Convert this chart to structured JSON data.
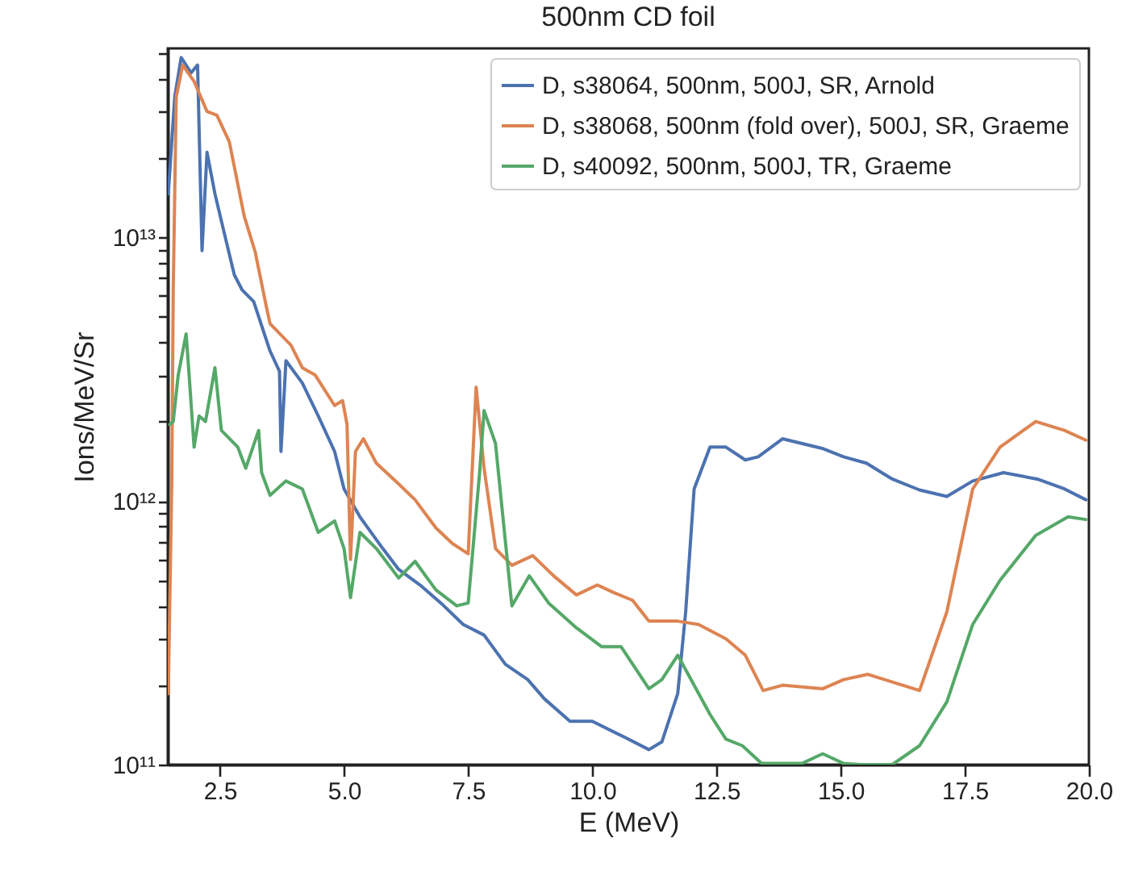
{
  "chart_data": {
    "type": "line",
    "title": "500nm CD foil",
    "xlabel": "E (MeV)",
    "ylabel": "Ions/MeV/Sr",
    "log": "y",
    "grid": false,
    "legend": "top right",
    "line_style": "solid",
    "xlim": [
      1.45,
      20
    ],
    "xticks": [
      2.5,
      {
        "value": 5,
        "label": "5.0"
      },
      7.5,
      {
        "value": 10,
        "label": "10.0"
      },
      12.5,
      {
        "value": 15,
        "label": "15.0"
      },
      17.5,
      {
        "value": 20,
        "label": "20.0"
      }
    ],
    "ylim": [
      100000000000.0,
      52000000000000.0
    ],
    "yticks": [
      {
        "value": 100000000000.0,
        "label": "10¹¹"
      },
      {
        "value": 200000000000.0,
        "label": null
      },
      {
        "value": 300000000000.0,
        "label": null
      },
      {
        "value": 400000000000.0,
        "label": null
      },
      {
        "value": 500000000000.0,
        "label": null
      },
      {
        "value": 600000000000.0,
        "label": null
      },
      {
        "value": 700000000000.0,
        "label": null
      },
      {
        "value": 800000000000.0,
        "label": null
      },
      {
        "value": 900000000000.0,
        "label": null
      },
      {
        "value": 1000000000000.0,
        "label": "10¹²"
      },
      {
        "value": 2000000000000.0,
        "label": null
      },
      {
        "value": 3000000000000.0,
        "label": null
      },
      {
        "value": 4000000000000.0,
        "label": null
      },
      {
        "value": 5000000000000.0,
        "label": null
      },
      {
        "value": 6000000000000.0,
        "label": null
      },
      {
        "value": 7000000000000.0,
        "label": null
      },
      {
        "value": 8000000000000.0,
        "label": null
      },
      {
        "value": 9000000000000.0,
        "label": null
      },
      {
        "value": 10000000000000.0,
        "label": "10¹³"
      },
      {
        "value": 20000000000000.0,
        "label": null
      },
      {
        "value": 30000000000000.0,
        "label": null
      },
      {
        "value": 40000000000000.0,
        "label": null
      },
      {
        "value": 50000000000000.0,
        "label": null
      }
    ],
    "series": [
      {
        "name": "D, s38064, 500nm, 500J, SR, Arnold",
        "color": "#4c72b0",
        "x": [
          1.46,
          1.59,
          1.72,
          1.92,
          2.05,
          2.14,
          2.24,
          2.4,
          2.63,
          2.79,
          2.95,
          3.18,
          3.51,
          3.7,
          3.73,
          3.83,
          4.16,
          4.48,
          4.81,
          5.0,
          5.32,
          5.78,
          6.1,
          6.53,
          6.95,
          7.4,
          7.82,
          8.25,
          8.7,
          9.03,
          9.55,
          10.0,
          10.65,
          11.14,
          11.4,
          11.72,
          11.88,
          12.05,
          12.37,
          12.69,
          13.08,
          13.34,
          13.83,
          14.64,
          15.06,
          15.52,
          16.04,
          16.59,
          17.14,
          17.66,
          18.28,
          18.96,
          19.51,
          19.94
        ],
        "values": [
          14600000000000.0,
          34000000000000.0,
          48000000000000.0,
          42000000000000.0,
          45000000000000.0,
          8900000000000.0,
          21000000000000.0,
          14600000000000.0,
          9600000000000.0,
          7200000000000.0,
          6300000000000.0,
          5700000000000.0,
          3700000000000.0,
          3100000000000.0,
          1540000000000.0,
          3400000000000.0,
          2800000000000.0,
          2100000000000.0,
          1540000000000.0,
          1110000000000.0,
          870000000000.0,
          660000000000.0,
          550000000000.0,
          480000000000.0,
          410000000000.0,
          340000000000.0,
          310000000000.0,
          240000000000.0,
          210000000000.0,
          178000000000.0,
          146000000000.0,
          146000000000.0,
          127000000000.0,
          114000000000.0,
          122000000000.0,
          186000000000.0,
          380000000000.0,
          1110000000000.0,
          1600000000000.0,
          1600000000000.0,
          1430000000000.0,
          1470000000000.0,
          1720000000000.0,
          1580000000000.0,
          1470000000000.0,
          1390000000000.0,
          1210000000000.0,
          1100000000000.0,
          1040000000000.0,
          1190000000000.0,
          1280000000000.0,
          1210000000000.0,
          1110000000000.0,
          1010000000000.0
        ]
      },
      {
        "name": "D, s38068, 500nm (fold over), 500J, SR, Graeme",
        "color": "#dd8452",
        "x": [
          1.46,
          1.53,
          1.56,
          1.62,
          1.75,
          1.98,
          2.24,
          2.44,
          2.69,
          2.99,
          3.21,
          3.44,
          3.51,
          3.93,
          4.16,
          4.42,
          4.81,
          4.97,
          5.06,
          5.13,
          5.23,
          5.39,
          5.65,
          6.1,
          6.43,
          6.85,
          7.18,
          7.5,
          7.66,
          7.82,
          8.05,
          8.38,
          8.8,
          9.22,
          9.68,
          10.1,
          10.42,
          10.81,
          11.14,
          11.72,
          12.14,
          12.69,
          13.08,
          13.44,
          13.83,
          14.64,
          15.06,
          15.55,
          16.59,
          17.14,
          17.66,
          18.21,
          18.93,
          19.51,
          19.94
        ],
        "values": [
          186000000000.0,
          1160000000000.0,
          6300000000000.0,
          34000000000000.0,
          45000000000000.0,
          39000000000000.0,
          30000000000000.0,
          29000000000000.0,
          23000000000000.0,
          12000000000000.0,
          8800000000000.0,
          5400000000000.0,
          4700000000000.0,
          3900000000000.0,
          3200000000000.0,
          3000000000000.0,
          2300000000000.0,
          2400000000000.0,
          1950000000000.0,
          600000000000.0,
          1540000000000.0,
          1720000000000.0,
          1390000000000.0,
          1160000000000.0,
          1010000000000.0,
          790000000000.0,
          690000000000.0,
          630000000000.0,
          2700000000000.0,
          1330000000000.0,
          660000000000.0,
          570000000000.0,
          620000000000.0,
          520000000000.0,
          440000000000.0,
          480000000000.0,
          450000000000.0,
          420000000000.0,
          350000000000.0,
          350000000000.0,
          340000000000.0,
          300000000000.0,
          260000000000.0,
          191000000000.0,
          200000000000.0,
          194000000000.0,
          210000000000.0,
          220000000000.0,
          191000000000.0,
          380000000000.0,
          1110000000000.0,
          1600000000000.0,
          2000000000000.0,
          1850000000000.0,
          1700000000000.0
        ]
      },
      {
        "name": "D, s40092, 500nm, 500J, TR, Graeme",
        "color": "#55a868",
        "x": [
          1.49,
          1.56,
          1.66,
          1.82,
          1.88,
          1.98,
          2.08,
          2.21,
          2.4,
          2.53,
          2.86,
          3.02,
          3.28,
          3.34,
          3.51,
          3.83,
          4.16,
          4.48,
          4.81,
          5.0,
          5.13,
          5.32,
          5.65,
          6.1,
          6.43,
          6.85,
          7.27,
          7.5,
          7.73,
          7.82,
          8.05,
          8.38,
          8.73,
          9.12,
          9.68,
          10.19,
          10.58,
          11.14,
          11.4,
          11.72,
          12.37,
          12.69,
          13.02,
          13.41,
          14.22,
          14.64,
          15.06,
          15.4,
          16.04,
          16.59,
          17.14,
          17.66,
          18.21,
          18.93,
          19.58,
          19.94
        ],
        "values": [
          1950000000000.0,
          2000000000000.0,
          3000000000000.0,
          4300000000000.0,
          3000000000000.0,
          1600000000000.0,
          2100000000000.0,
          2000000000000.0,
          3200000000000.0,
          1850000000000.0,
          1600000000000.0,
          1330000000000.0,
          1850000000000.0,
          1280000000000.0,
          1050000000000.0,
          1190000000000.0,
          1110000000000.0,
          760000000000.0,
          840000000000.0,
          660000000000.0,
          430000000000.0,
          760000000000.0,
          660000000000.0,
          510000000000.0,
          590000000000.0,
          460000000000.0,
          400000000000.0,
          410000000000.0,
          1280000000000.0,
          2200000000000.0,
          1650000000000.0,
          400000000000.0,
          520000000000.0,
          410000000000.0,
          330000000000.0,
          280000000000.0,
          280000000000.0,
          194000000000.0,
          210000000000.0,
          260000000000.0,
          155000000000.0,
          125000000000.0,
          118000000000.0,
          101000000000.0,
          101000000000.0,
          110000000000.0,
          101000000000.0,
          100000000000.0,
          100000000000.0,
          118000000000.0,
          173000000000.0,
          340000000000.0,
          500000000000.0,
          740000000000.0,
          870000000000.0,
          850000000000.0
        ]
      }
    ]
  }
}
